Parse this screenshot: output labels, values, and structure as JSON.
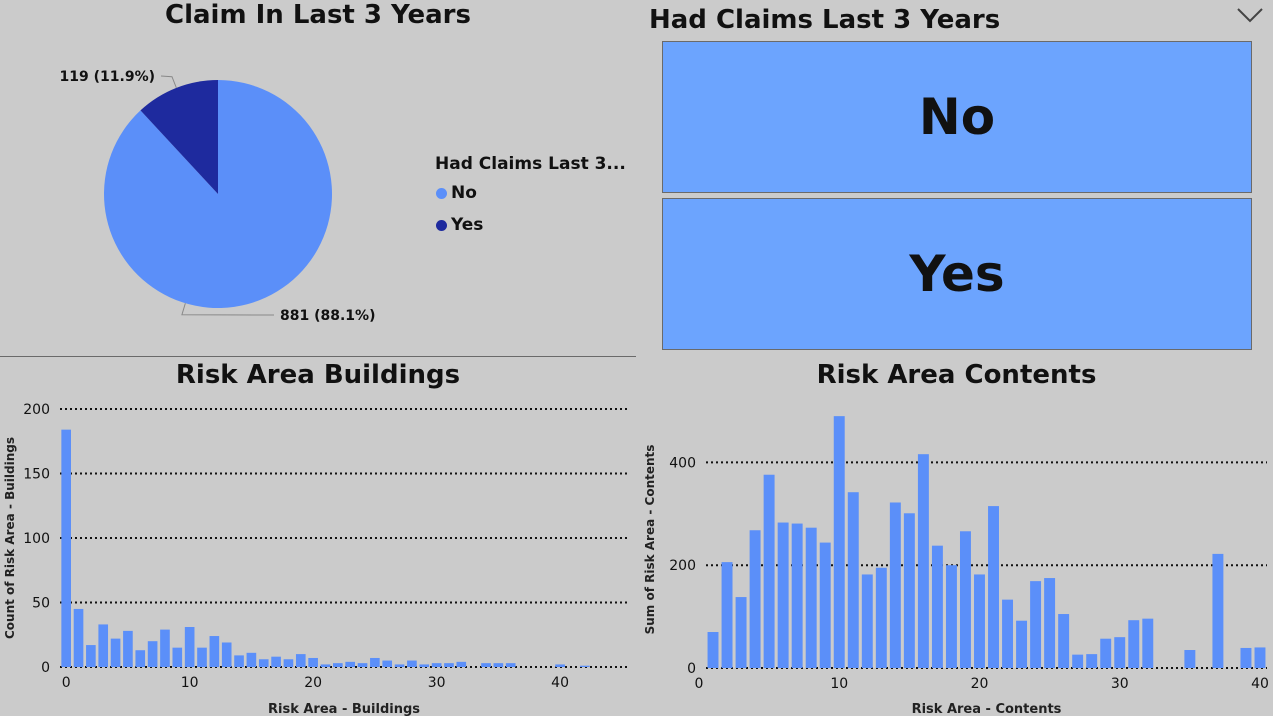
{
  "pie": {
    "title": "Claim In Last 3 Years",
    "legend_title": "Had Claims Last 3...",
    "chart_data": {
      "type": "pie",
      "categories": [
        "No",
        "Yes"
      ],
      "values": [
        881,
        119
      ],
      "labels": [
        "881 (88.1%)",
        "119 (11.9%)"
      ],
      "colors": [
        "#5b8ff9",
        "#1e2a9e"
      ]
    }
  },
  "slicer": {
    "title": "Had Claims Last 3 Years",
    "options": [
      "No",
      "Yes"
    ],
    "chevron_icon": "chevron-down-icon"
  },
  "buildings": {
    "title": "Risk Area Buildings",
    "chart_data": {
      "type": "bar",
      "xlabel": "Risk Area - Buildings",
      "ylabel": "Count of Risk Area - Buildings",
      "x": [
        0,
        1,
        2,
        3,
        4,
        5,
        6,
        7,
        8,
        9,
        10,
        11,
        12,
        13,
        14,
        15,
        16,
        17,
        18,
        19,
        20,
        21,
        22,
        23,
        24,
        25,
        26,
        27,
        28,
        29,
        30,
        31,
        32,
        34,
        35,
        36,
        40,
        42
      ],
      "values": [
        184,
        45,
        17,
        33,
        22,
        28,
        13,
        20,
        29,
        15,
        31,
        15,
        24,
        19,
        9,
        11,
        6,
        8,
        6,
        10,
        7,
        2,
        3,
        4,
        3,
        7,
        5,
        2,
        5,
        2,
        3,
        3,
        4,
        3,
        3,
        3,
        2,
        1
      ],
      "ylim": [
        0,
        200
      ],
      "yticks": [
        0,
        50,
        100,
        150,
        200
      ],
      "xlim": [
        -0.5,
        45.5
      ],
      "xticks": [
        0,
        10,
        20,
        30,
        40
      ],
      "color": "#5b8ff9",
      "grid": true
    }
  },
  "contents": {
    "title": "Risk Area Contents",
    "chart_data": {
      "type": "bar",
      "xlabel": "Risk Area - Contents",
      "ylabel": "Sum of Risk Area - Contents",
      "x": [
        1,
        2,
        3,
        4,
        5,
        6,
        7,
        8,
        9,
        10,
        11,
        12,
        13,
        14,
        15,
        16,
        17,
        18,
        19,
        20,
        21,
        22,
        23,
        24,
        25,
        26,
        27,
        28,
        29,
        30,
        31,
        32,
        35,
        37,
        39,
        40
      ],
      "values": [
        70,
        206,
        138,
        268,
        376,
        283,
        281,
        273,
        244,
        490,
        342,
        182,
        195,
        322,
        301,
        416,
        238,
        200,
        266,
        182,
        315,
        133,
        92,
        169,
        175,
        105,
        26,
        27,
        57,
        60,
        93,
        96,
        35,
        222,
        39,
        40
      ],
      "ylim": [
        0,
        500
      ],
      "yticks": [
        0,
        200,
        400
      ],
      "xlim": [
        0.5,
        40.5
      ],
      "xticks": [
        0,
        10,
        20,
        30,
        40
      ],
      "color": "#5b8ff9",
      "grid": true
    }
  }
}
